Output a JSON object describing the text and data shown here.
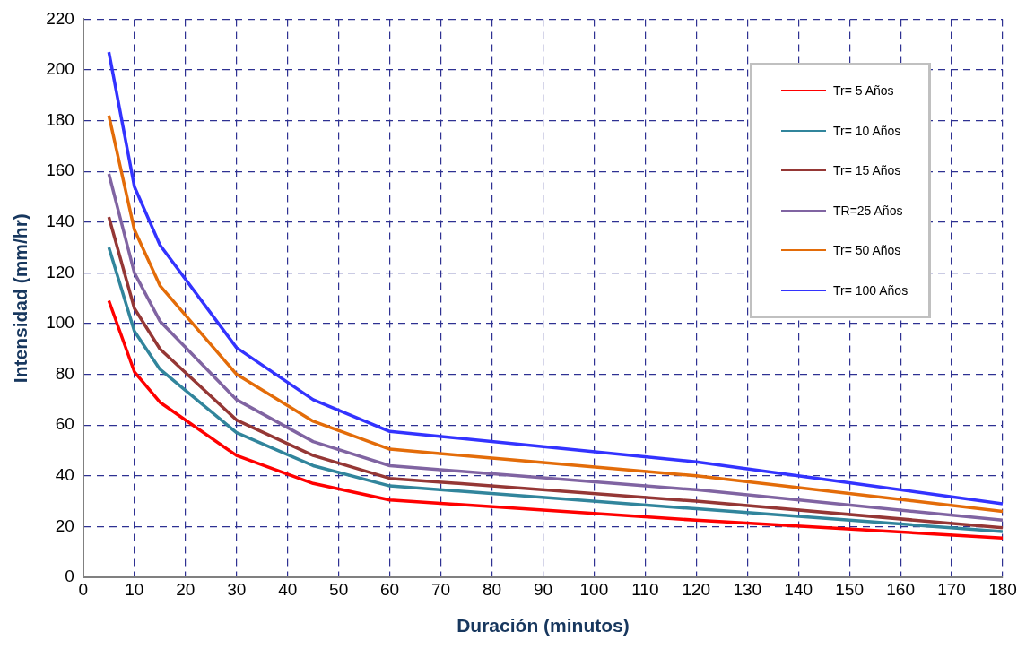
{
  "chart_data": {
    "type": "line",
    "xlabel": "Duración (minutos)",
    "ylabel": "Intensidad (mm/hr)",
    "x": [
      5,
      10,
      15,
      30,
      45,
      60,
      120,
      180
    ],
    "series": [
      {
        "name": "Tr= 5 Años",
        "color": "#ff0000",
        "values": [
          109,
          81,
          69,
          48,
          37,
          30.5,
          22.5,
          15.5
        ]
      },
      {
        "name": "Tr= 10 Años",
        "color": "#31859c",
        "values": [
          130,
          97,
          82,
          57,
          44,
          36,
          27,
          18
        ]
      },
      {
        "name": "Tr= 15 Años",
        "color": "#953735",
        "values": [
          142,
          106,
          90,
          62,
          48,
          39,
          30,
          19.5
        ]
      },
      {
        "name": "TR=25 Años",
        "color": "#8064a2",
        "values": [
          159,
          120,
          101,
          70,
          53.5,
          44,
          34.5,
          22.5
        ]
      },
      {
        "name": "Tr= 50 Años",
        "color": "#e36c09",
        "values": [
          182,
          137,
          115,
          80,
          61.5,
          50.5,
          40,
          26
        ]
      },
      {
        "name": "Tr= 100 Años",
        "color": "#3333ff",
        "values": [
          207,
          154,
          131,
          90.5,
          70,
          57.5,
          45.5,
          29
        ]
      }
    ],
    "xlim": [
      0,
      180
    ],
    "xticks": [
      0,
      10,
      20,
      30,
      40,
      50,
      60,
      70,
      80,
      90,
      100,
      110,
      120,
      130,
      140,
      150,
      160,
      170,
      180
    ],
    "ylim": [
      0,
      220
    ],
    "yticks": [
      0,
      20,
      40,
      60,
      80,
      100,
      120,
      140,
      160,
      180,
      200,
      220
    ],
    "grid": true,
    "legend": "top right",
    "marker": "none",
    "line_style": "solid"
  }
}
